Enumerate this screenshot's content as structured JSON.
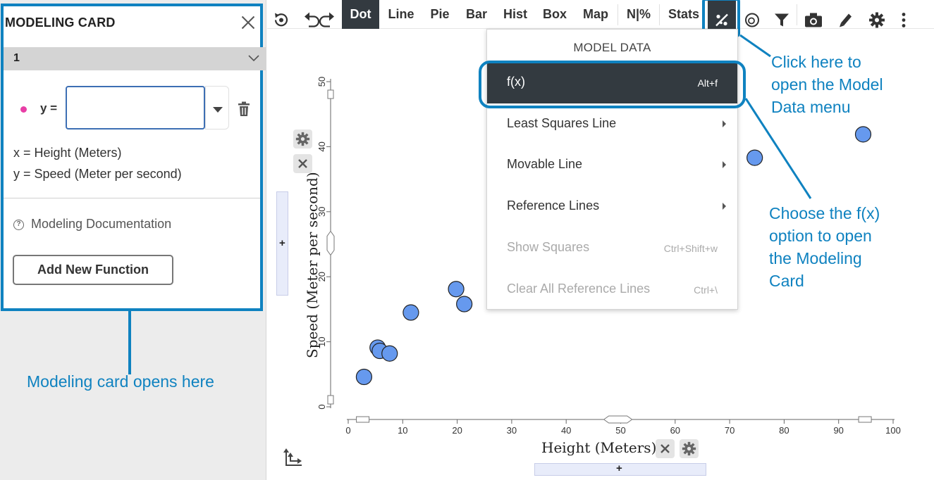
{
  "modeling_card": {
    "title": "MODELING CARD",
    "section_label": "1",
    "y_label": "y =",
    "function_value": "",
    "var_x": "x = Height (Meters)",
    "var_y": "y = Speed (Meter per second)",
    "doc_label": "Modeling Documentation",
    "add_button": "Add New Function",
    "function_color": "#e83ea6"
  },
  "toolbar": {
    "items": [
      "Dot",
      "Line",
      "Pie",
      "Bar",
      "Hist",
      "Box",
      "Map",
      "N|%",
      "Stats"
    ],
    "active": "Dot",
    "icons": [
      "reset-icon",
      "undo-icon",
      "redo-icon",
      "model-data-icon",
      "rings-icon",
      "filter-icon",
      "camera-icon",
      "pen-icon",
      "gear-icon",
      "more-icon"
    ]
  },
  "menu": {
    "title": "MODEL DATA",
    "items": [
      {
        "label": "f(x)",
        "shortcut": "Alt+f",
        "state": "selected"
      },
      {
        "label": "Least Squares Line",
        "shortcut": "",
        "state": "submenu"
      },
      {
        "label": "Movable Line",
        "shortcut": "",
        "state": "submenu"
      },
      {
        "label": "Reference Lines",
        "shortcut": "",
        "state": "submenu"
      },
      {
        "label": "Show Squares",
        "shortcut": "Ctrl+Shift+w",
        "state": "disabled"
      },
      {
        "label": "Clear All Reference Lines",
        "shortcut": "Ctrl+\\",
        "state": "disabled"
      }
    ]
  },
  "graph": {
    "x_title": "Height (Meters)",
    "y_title": "Speed (Meter per second)",
    "x_min": 0,
    "x_max": 100,
    "x_step": 10,
    "y_min": 0,
    "y_max": 50,
    "y_step": 10,
    "point_color": "#6699ee",
    "plus_label": "+",
    "points": [
      {
        "x": 2.9,
        "y": 4.6
      },
      {
        "x": 5.4,
        "y": 9.1
      },
      {
        "x": 5.8,
        "y": 8.6
      },
      {
        "x": 7.6,
        "y": 8.2
      },
      {
        "x": 11.5,
        "y": 14.5
      },
      {
        "x": 19.8,
        "y": 18.1
      },
      {
        "x": 21.3,
        "y": 15.8
      },
      {
        "x": 74.6,
        "y": 38.3
      },
      {
        "x": 94.5,
        "y": 41.9
      }
    ]
  },
  "annotations": {
    "model_menu_note": [
      "Click here to",
      "open the Model",
      "Data menu"
    ],
    "fx_note": [
      "Choose the f(x)",
      "option to open",
      "the Modeling",
      "Card"
    ],
    "card_note": "Modeling card opens here",
    "accent_color": "#0f82c0"
  }
}
